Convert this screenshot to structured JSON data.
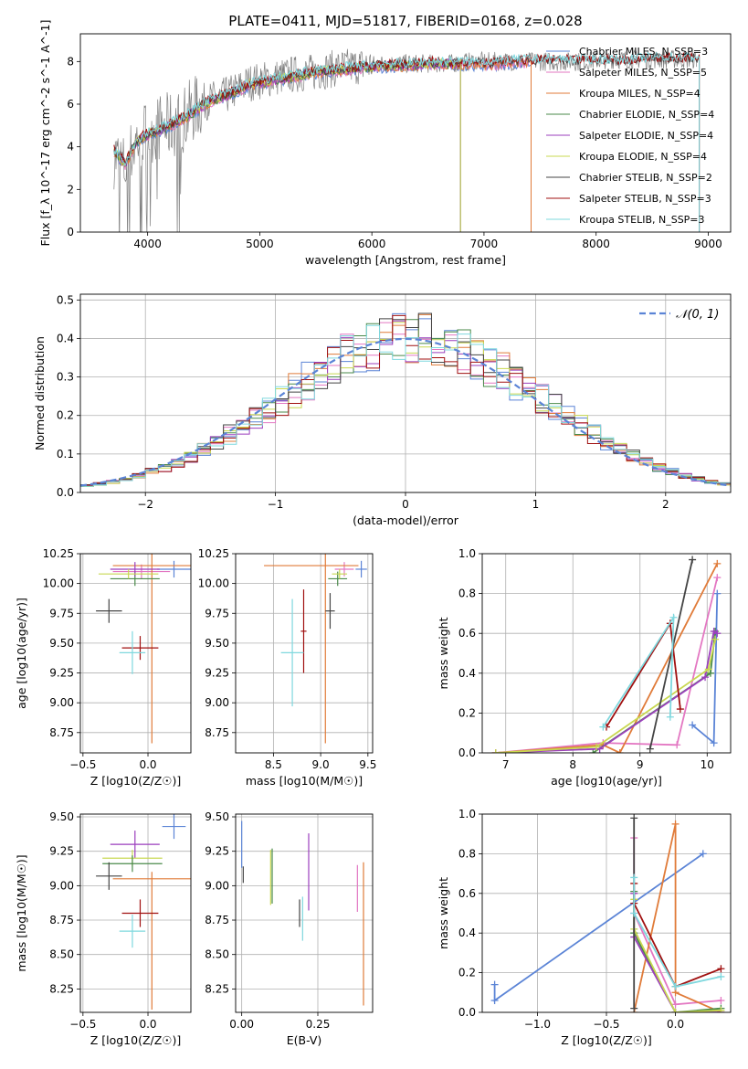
{
  "chart_data": [
    {
      "type": "line",
      "title": "PLATE=0411, MJD=51817, FIBERID=0168, z=0.028",
      "xlabel": "wavelength [Angstrom, rest frame]",
      "ylabel": "Flux [f_λ 10^-17 erg cm^-2 s^-1 A^-1]",
      "xlim": [
        3400,
        9200
      ],
      "ylim": [
        0,
        9.3
      ],
      "xticks": [
        4000,
        5000,
        6000,
        7000,
        8000,
        9000
      ],
      "yticks": [
        0,
        2,
        4,
        6,
        8
      ],
      "grid": false,
      "legend_position": "upper right",
      "observed": {
        "x": [
          3700,
          3800,
          3900,
          4000,
          4100,
          4200,
          4300,
          4400,
          4500,
          4700,
          4900,
          5100,
          5300,
          5500,
          5700,
          5900,
          6100,
          6300,
          6500,
          6700,
          6900,
          7100,
          7300,
          7500,
          7700,
          7900,
          8100,
          8300,
          8500,
          8700,
          8900
        ],
        "y": [
          3.6,
          3.0,
          4.3,
          4.7,
          4.9,
          5.0,
          5.2,
          5.7,
          6.1,
          6.4,
          7.0,
          7.2,
          7.4,
          7.5,
          7.7,
          7.8,
          7.9,
          7.9,
          7.9,
          7.9,
          8.0,
          8.0,
          8.0,
          8.0,
          8.0,
          8.0,
          8.1,
          8.1,
          8.1,
          8.1,
          8.1
        ]
      },
      "model": {
        "x": [
          3700,
          3800,
          3900,
          4000,
          4100,
          4200,
          4300,
          4400,
          4500,
          4700,
          4900,
          5100,
          5300,
          5500,
          5700,
          5900,
          6100,
          6300,
          6500,
          6700,
          6900,
          7100,
          7300,
          7500,
          7700,
          7900,
          8100,
          8300,
          8500,
          8700,
          8900
        ],
        "y": [
          3.8,
          3.2,
          4.2,
          4.6,
          4.8,
          5.0,
          5.3,
          5.6,
          6.0,
          6.4,
          6.9,
          7.1,
          7.3,
          7.5,
          7.6,
          7.7,
          7.8,
          7.8,
          7.9,
          7.9,
          7.9,
          7.9,
          8.0,
          8.0,
          8.0,
          8.0,
          8.0,
          8.0,
          8.1,
          8.1,
          8.1
        ]
      },
      "series": [
        {
          "name": "Chabrier MILES, N_SSP=3",
          "color": "#5b84d6",
          "end_x": 7420
        },
        {
          "name": "Salpeter MILES, N_SSP=5",
          "color": "#e377c2",
          "end_x": 7420
        },
        {
          "name": "Kroupa MILES, N_SSP=4",
          "color": "#e07b39",
          "end_x": 7420
        },
        {
          "name": "Chabrier ELODIE, N_SSP=4",
          "color": "#4a8a4a",
          "end_x": 6790
        },
        {
          "name": "Salpeter ELODIE, N_SSP=4",
          "color": "#9b3fbd",
          "end_x": 6790
        },
        {
          "name": "Kroupa ELODIE, N_SSP=4",
          "color": "#c8d850",
          "end_x": 6790
        },
        {
          "name": "Chabrier STELIB, N_SSP=2",
          "color": "#444444",
          "end_x": 8920
        },
        {
          "name": "Salpeter STELIB, N_SSP=3",
          "color": "#a01010",
          "end_x": 8920
        },
        {
          "name": "Kroupa STELIB, N_SSP=3",
          "color": "#7fd8de",
          "end_x": 8920
        }
      ]
    },
    {
      "type": "histogram",
      "xlabel": "(data-model)/error",
      "ylabel": "Normed distribution",
      "xlim": [
        -2.5,
        2.5
      ],
      "ylim": [
        0,
        0.515
      ],
      "xticks": [
        -2,
        -1,
        0,
        1,
        2
      ],
      "yticks": [
        0.0,
        0.1,
        0.2,
        0.3,
        0.4,
        0.5
      ],
      "grid": true,
      "legend_position": "upper right",
      "reference_curve": {
        "label": "𝒩(0, 1)",
        "color": "#5b84d6",
        "style": "dashed"
      },
      "bin_width": 0.1,
      "colors": [
        "#5b84d6",
        "#e377c2",
        "#e07b39",
        "#4a8a4a",
        "#9b3fbd",
        "#c8d850",
        "#444444",
        "#a01010",
        "#7fd8de"
      ]
    },
    {
      "type": "scatter",
      "xlabel": "Z [log10(Z/Z☉)]",
      "ylabel": "age [log10(age/yr)]",
      "xlim": [
        -0.52,
        0.33
      ],
      "ylim": [
        8.58,
        10.25
      ],
      "xticks": [
        -0.5,
        0.0
      ],
      "yticks": [
        8.75,
        9.0,
        9.25,
        9.5,
        9.75,
        10.0,
        10.25
      ],
      "grid": true,
      "points": [
        {
          "color": "#5b84d6",
          "x": 0.2,
          "y": 10.12,
          "xerr": 0.13,
          "yerr": 0.07
        },
        {
          "color": "#e377c2",
          "x": -0.05,
          "y": 10.1,
          "xerr": 0.22,
          "yerr": 0.06
        },
        {
          "color": "#e07b39",
          "x": 0.03,
          "y": 10.15,
          "xerr": 0.3,
          "yerr": 0.0
        },
        {
          "color": "#e07b39",
          "x": 0.03,
          "y": 9.46,
          "xerr": 0.0,
          "yerr": 0.8
        },
        {
          "color": "#4a8a4a",
          "x": -0.1,
          "y": 10.04,
          "xerr": 0.19,
          "yerr": 0.06
        },
        {
          "color": "#9b3fbd",
          "x": -0.1,
          "y": 10.12,
          "xerr": 0.19,
          "yerr": 0.06
        },
        {
          "color": "#c8d850",
          "x": -0.15,
          "y": 10.08,
          "xerr": 0.23,
          "yerr": 0.04
        },
        {
          "color": "#444444",
          "x": -0.3,
          "y": 9.77,
          "xerr": 0.1,
          "yerr": 0.1
        },
        {
          "color": "#a01010",
          "x": -0.06,
          "y": 9.46,
          "xerr": 0.14,
          "yerr": 0.1
        },
        {
          "color": "#7fd8de",
          "x": -0.12,
          "y": 9.42,
          "xerr": 0.1,
          "yerr": 0.18
        }
      ]
    },
    {
      "type": "scatter",
      "xlabel": "mass [log10(M/M☉)]",
      "ylabel": "",
      "xlim": [
        8.1,
        9.55
      ],
      "ylim": [
        8.58,
        10.25
      ],
      "xticks": [
        8.5,
        9.0,
        9.5
      ],
      "yticks": [
        8.75,
        9.0,
        9.25,
        9.5,
        9.75,
        10.0,
        10.25
      ],
      "grid": true,
      "points": [
        {
          "color": "#5b84d6",
          "x": 9.43,
          "y": 10.12,
          "xerr": 0.06,
          "yerr": 0.07
        },
        {
          "color": "#e377c2",
          "x": 9.25,
          "y": 10.12,
          "xerr": 0.1,
          "yerr": 0.06
        },
        {
          "color": "#e07b39",
          "x": 8.9,
          "y": 10.15,
          "xerr": 0.5,
          "yerr": 0.0
        },
        {
          "color": "#e07b39",
          "x": 9.05,
          "y": 9.46,
          "xerr": 0.0,
          "yerr": 0.8
        },
        {
          "color": "#4a8a4a",
          "x": 9.18,
          "y": 10.04,
          "xerr": 0.1,
          "yerr": 0.06
        },
        {
          "color": "#c8d850",
          "x": 9.2,
          "y": 10.08,
          "xerr": 0.08,
          "yerr": 0.04
        },
        {
          "color": "#444444",
          "x": 9.1,
          "y": 9.77,
          "xerr": 0.05,
          "yerr": 0.15
        },
        {
          "color": "#a01010",
          "x": 8.82,
          "y": 9.6,
          "xerr": 0.03,
          "yerr": 0.35
        },
        {
          "color": "#7fd8de",
          "x": 8.7,
          "y": 9.42,
          "xerr": 0.12,
          "yerr": 0.45
        }
      ]
    },
    {
      "type": "line",
      "xlabel": "age [log10(age/yr)]",
      "ylabel": "mass weight",
      "xlim": [
        6.65,
        10.35
      ],
      "ylim": [
        0,
        1.0
      ],
      "xticks": [
        7,
        8,
        9,
        10
      ],
      "yticks": [
        0.0,
        0.2,
        0.4,
        0.6,
        0.8,
        1.0
      ],
      "grid": true,
      "series": [
        {
          "color": "#5b84d6",
          "x": [
            10.15,
            10.1,
            9.78
          ],
          "y": [
            0.8,
            0.05,
            0.14
          ]
        },
        {
          "color": "#e377c2",
          "x": [
            6.85,
            8.45,
            9.55,
            10.15
          ],
          "y": [
            0.0,
            0.05,
            0.04,
            0.88
          ]
        },
        {
          "color": "#e07b39",
          "x": [
            6.85,
            8.45,
            8.7,
            10.15
          ],
          "y": [
            0.0,
            0.04,
            0.0,
            0.95
          ]
        },
        {
          "color": "#4a8a4a",
          "x": [
            8.3,
            10.05,
            10.12
          ],
          "y": [
            0.0,
            0.4,
            0.61
          ]
        },
        {
          "color": "#9b3fbd",
          "x": [
            6.85,
            8.4,
            9.97,
            10.1,
            10.15
          ],
          "y": [
            0.0,
            0.02,
            0.38,
            0.61,
            0.6
          ]
        },
        {
          "color": "#c8d850",
          "x": [
            6.85,
            8.35,
            10.02,
            10.12
          ],
          "y": [
            0.0,
            0.03,
            0.42,
            0.57
          ]
        },
        {
          "color": "#444444",
          "x": [
            9.15,
            9.78
          ],
          "y": [
            0.02,
            0.97
          ]
        },
        {
          "color": "#a01010",
          "x": [
            8.5,
            9.45,
            9.6
          ],
          "y": [
            0.13,
            0.65,
            0.22
          ]
        },
        {
          "color": "#7fd8de",
          "x": [
            8.45,
            9.5,
            9.45
          ],
          "y": [
            0.13,
            0.68,
            0.18
          ]
        }
      ]
    },
    {
      "type": "scatter",
      "xlabel": "Z [log10(Z/Z☉)]",
      "ylabel": "mass [log10(M/M☉)]",
      "xlim": [
        -0.52,
        0.33
      ],
      "ylim": [
        8.08,
        9.52
      ],
      "xticks": [
        -0.5,
        0.0
      ],
      "yticks": [
        8.25,
        8.5,
        8.75,
        9.0,
        9.25,
        9.5
      ],
      "grid": true,
      "points": [
        {
          "color": "#5b84d6",
          "x": 0.2,
          "y": 9.43,
          "xerr": 0.09,
          "yerr": 0.09
        },
        {
          "color": "#9b3fbd",
          "x": -0.1,
          "y": 9.3,
          "xerr": 0.19,
          "yerr": 0.1
        },
        {
          "color": "#c8d850",
          "x": -0.12,
          "y": 9.2,
          "xerr": 0.23,
          "yerr": 0.06
        },
        {
          "color": "#4a8a4a",
          "x": -0.12,
          "y": 9.16,
          "xerr": 0.23,
          "yerr": 0.06
        },
        {
          "color": "#e07b39",
          "x": 0.03,
          "y": 9.05,
          "xerr": 0.3,
          "yerr": 0.0
        },
        {
          "color": "#e07b39",
          "x": 0.03,
          "y": 8.6,
          "xerr": 0.0,
          "yerr": 0.5
        },
        {
          "color": "#444444",
          "x": -0.3,
          "y": 9.07,
          "xerr": 0.1,
          "yerr": 0.1
        },
        {
          "color": "#a01010",
          "x": -0.06,
          "y": 8.8,
          "xerr": 0.14,
          "yerr": 0.1
        },
        {
          "color": "#7fd8de",
          "x": -0.12,
          "y": 8.67,
          "xerr": 0.1,
          "yerr": 0.12
        }
      ]
    },
    {
      "type": "scatter",
      "xlabel": "E(B-V)",
      "ylabel": "",
      "xlim": [
        -0.02,
        0.43
      ],
      "ylim": [
        8.08,
        9.52
      ],
      "xticks": [
        0.0,
        0.25
      ],
      "yticks": [
        8.25,
        8.5,
        8.75,
        9.0,
        9.25,
        9.5
      ],
      "grid": true,
      "points": [
        {
          "color": "#5b84d6",
          "x": 0.0,
          "y": 9.3,
          "xerr": 0.0,
          "yerr": 0.17
        },
        {
          "color": "#444444",
          "x": 0.005,
          "y": 9.08,
          "xerr": 0.0,
          "yerr": 0.06
        },
        {
          "color": "#4a8a4a",
          "x": 0.1,
          "y": 9.07,
          "xerr": 0.0,
          "yerr": 0.2
        },
        {
          "color": "#c8d850",
          "x": 0.095,
          "y": 9.06,
          "xerr": 0.0,
          "yerr": 0.2
        },
        {
          "color": "#9b3fbd",
          "x": 0.22,
          "y": 9.1,
          "xerr": 0.0,
          "yerr": 0.28
        },
        {
          "color": "#444444",
          "x": 0.19,
          "y": 8.8,
          "xerr": 0.0,
          "yerr": 0.1
        },
        {
          "color": "#7fd8de",
          "x": 0.2,
          "y": 8.76,
          "xerr": 0.0,
          "yerr": 0.16
        },
        {
          "color": "#e377c2",
          "x": 0.38,
          "y": 8.98,
          "xerr": 0.0,
          "yerr": 0.17
        },
        {
          "color": "#e07b39",
          "x": 0.4,
          "y": 8.65,
          "xerr": 0.0,
          "yerr": 0.52
        }
      ]
    },
    {
      "type": "line",
      "xlabel": "Z [log10(Z/Z☉)]",
      "ylabel": "mass weight",
      "xlim": [
        -1.4,
        0.4
      ],
      "ylim": [
        0,
        1.0
      ],
      "xticks": [
        -1.0,
        -0.5,
        0.0
      ],
      "yticks": [
        0.0,
        0.2,
        0.4,
        0.6,
        0.8,
        1.0
      ],
      "grid": true,
      "series": [
        {
          "color": "#5b84d6",
          "x": [
            -1.31,
            -1.31,
            0.2
          ],
          "y": [
            0.14,
            0.06,
            0.8
          ]
        },
        {
          "color": "#e377c2",
          "x": [
            -0.3,
            -0.3,
            0.0,
            0.33
          ],
          "y": [
            0.88,
            0.5,
            0.04,
            0.06
          ]
        },
        {
          "color": "#e07b39",
          "x": [
            -0.3,
            0.0,
            0.0,
            0.33
          ],
          "y": [
            0.0,
            0.95,
            0.1,
            0.0
          ]
        },
        {
          "color": "#4a8a4a",
          "x": [
            -0.3,
            -0.3,
            0.0,
            0.33
          ],
          "y": [
            0.61,
            0.4,
            0.0,
            0.02
          ]
        },
        {
          "color": "#9b3fbd",
          "x": [
            -0.3,
            -0.3,
            0.0,
            0.33
          ],
          "y": [
            0.6,
            0.38,
            0.0,
            0.0
          ]
        },
        {
          "color": "#c8d850",
          "x": [
            -0.3,
            -0.3,
            0.0,
            0.33
          ],
          "y": [
            0.57,
            0.42,
            0.0,
            0.01
          ]
        },
        {
          "color": "#444444",
          "x": [
            -0.3,
            -0.3
          ],
          "y": [
            0.02,
            0.98
          ]
        },
        {
          "color": "#a01010",
          "x": [
            -0.3,
            -0.3,
            0.0,
            0.33
          ],
          "y": [
            0.65,
            0.55,
            0.13,
            0.22
          ]
        },
        {
          "color": "#7fd8de",
          "x": [
            -0.3,
            -0.3,
            0.0,
            0.33
          ],
          "y": [
            0.68,
            0.5,
            0.13,
            0.18
          ]
        }
      ]
    }
  ]
}
